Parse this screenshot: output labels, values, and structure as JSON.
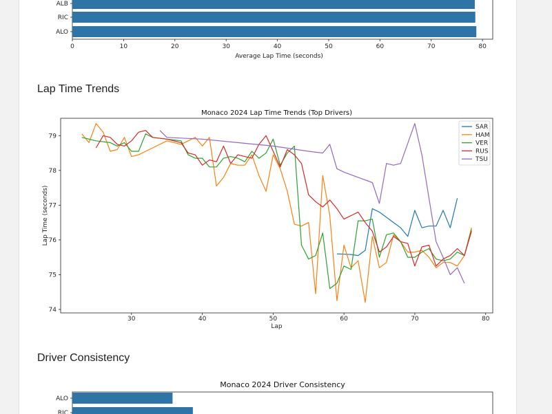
{
  "sections": {
    "trends_heading": "Lap Time Trends",
    "consistency_heading": "Driver Consistency"
  },
  "chart_data": [
    {
      "type": "bar",
      "orientation": "horizontal",
      "title": "",
      "xlabel": "Average Lap Time (seconds)",
      "ylabel": "",
      "categories": [
        "ALB",
        "RIC",
        "ALO"
      ],
      "values": [
        78.5,
        78.6,
        78.8
      ],
      "xlim": [
        0,
        82
      ],
      "xticks": [
        0,
        10,
        20,
        30,
        40,
        50,
        60,
        70,
        80
      ],
      "color": "#2f74a7"
    },
    {
      "type": "line",
      "title": "Monaco 2024 Lap Time Trends (Top Drivers)",
      "xlabel": "Lap",
      "ylabel": "Lap Time (seconds)",
      "xlim": [
        20,
        81
      ],
      "ylim": [
        73.9,
        79.5
      ],
      "xticks": [
        30,
        40,
        50,
        60,
        70,
        80
      ],
      "yticks": [
        74,
        75,
        76,
        77,
        78,
        79
      ],
      "legend": "top-right",
      "series": [
        {
          "name": "SAR",
          "color": "#1f77b4",
          "points": [
            [
              59,
              75.6
            ],
            [
              61,
              75.58
            ],
            [
              62,
              75.55
            ],
            [
              63,
              75.7
            ],
            [
              64,
              76.9
            ],
            [
              65,
              76.8
            ],
            [
              66,
              76.65
            ],
            [
              67,
              76.5
            ],
            [
              68,
              76.35
            ],
            [
              69,
              76.1
            ],
            [
              70,
              76.85
            ],
            [
              71,
              76.35
            ],
            [
              72,
              76.4
            ],
            [
              73,
              76.4
            ],
            [
              74,
              76.85
            ],
            [
              75,
              76.35
            ],
            [
              76,
              77.2
            ]
          ]
        },
        {
          "name": "HAM",
          "color": "#ff7f0e",
          "points": [
            [
              23,
              79.05
            ],
            [
              24,
              78.8
            ],
            [
              25,
              79.35
            ],
            [
              26,
              79.1
            ],
            [
              27,
              78.55
            ],
            [
              28,
              78.6
            ],
            [
              29,
              78.95
            ],
            [
              30,
              78.4
            ],
            [
              31,
              78.45
            ],
            [
              33,
              78.65
            ],
            [
              35,
              78.85
            ],
            [
              37,
              78.75
            ],
            [
              38,
              78.85
            ],
            [
              39,
              78.95
            ],
            [
              40,
              78.7
            ],
            [
              41,
              78.95
            ],
            [
              42,
              77.55
            ],
            [
              43,
              77.8
            ],
            [
              44,
              78.2
            ],
            [
              45,
              78.15
            ],
            [
              46,
              78.15
            ],
            [
              47,
              78.45
            ],
            [
              48,
              77.85
            ],
            [
              49,
              77.4
            ],
            [
              50,
              78.45
            ],
            [
              51,
              78.05
            ],
            [
              52,
              77.4
            ],
            [
              53,
              76.45
            ],
            [
              54,
              76.4
            ],
            [
              55,
              76.5
            ],
            [
              56,
              74.45
            ],
            [
              57,
              77.85
            ],
            [
              58,
              76.7
            ],
            [
              59,
              74.25
            ],
            [
              60,
              75.85
            ],
            [
              61,
              75.2
            ],
            [
              62,
              75.4
            ],
            [
              63,
              74.2
            ],
            [
              64,
              76.1
            ],
            [
              65,
              75.2
            ],
            [
              66,
              75.35
            ],
            [
              67,
              76.15
            ],
            [
              68,
              75.95
            ],
            [
              69,
              75.65
            ],
            [
              70,
              75.65
            ],
            [
              71,
              75.7
            ],
            [
              72,
              75.5
            ],
            [
              73,
              75.2
            ],
            [
              74,
              75.35
            ],
            [
              75,
              75.35
            ],
            [
              76,
              75.25
            ],
            [
              77,
              75.55
            ],
            [
              78,
              76.35
            ]
          ]
        },
        {
          "name": "VER",
          "color": "#2ca02c",
          "points": [
            [
              23,
              78.95
            ],
            [
              25,
              78.85
            ],
            [
              27,
              78.8
            ],
            [
              28,
              78.7
            ],
            [
              29,
              78.8
            ],
            [
              30,
              78.55
            ],
            [
              31,
              78.55
            ],
            [
              32,
              79.05
            ],
            [
              33,
              78.95
            ],
            [
              35,
              78.9
            ],
            [
              37,
              78.85
            ],
            [
              38,
              78.45
            ],
            [
              39,
              78.35
            ],
            [
              40,
              78.35
            ],
            [
              41,
              78.1
            ],
            [
              42,
              78.1
            ],
            [
              43,
              78.35
            ],
            [
              44,
              78.4
            ],
            [
              45,
              78.35
            ],
            [
              46,
              78.25
            ],
            [
              47,
              78.55
            ],
            [
              48,
              78.35
            ],
            [
              49,
              78.5
            ],
            [
              50,
              78.9
            ],
            [
              51,
              78.15
            ],
            [
              52,
              78.5
            ],
            [
              53,
              78.7
            ],
            [
              54,
              75.85
            ],
            [
              55,
              75.45
            ],
            [
              56,
              75.55
            ],
            [
              57,
              76.2
            ],
            [
              58,
              74.6
            ],
            [
              59,
              74.75
            ],
            [
              60,
              75.25
            ],
            [
              61,
              75.15
            ],
            [
              62,
              76.55
            ],
            [
              63,
              76.55
            ],
            [
              64,
              76.6
            ],
            [
              65,
              75.5
            ],
            [
              66,
              76.15
            ],
            [
              67,
              76.2
            ],
            [
              68,
              75.95
            ],
            [
              69,
              75.5
            ],
            [
              70,
              75.5
            ],
            [
              71,
              75.65
            ],
            [
              72,
              75.75
            ],
            [
              73,
              75.45
            ],
            [
              74,
              75.4
            ],
            [
              75,
              75.45
            ],
            [
              76,
              75.65
            ],
            [
              77,
              75.55
            ],
            [
              78,
              76.3
            ]
          ]
        },
        {
          "name": "RUS",
          "color": "#d62728",
          "points": [
            [
              25,
              78.65
            ],
            [
              26,
              79.0
            ],
            [
              27,
              78.95
            ],
            [
              28,
              78.75
            ],
            [
              29,
              78.7
            ],
            [
              30,
              78.85
            ],
            [
              31,
              79.1
            ],
            [
              32,
              79.15
            ],
            [
              33,
              78.95
            ],
            [
              35,
              78.9
            ],
            [
              37,
              78.8
            ],
            [
              38,
              78.5
            ],
            [
              39,
              78.45
            ],
            [
              40,
              78.15
            ],
            [
              41,
              78.3
            ],
            [
              42,
              78.25
            ],
            [
              43,
              78.7
            ],
            [
              44,
              78.2
            ],
            [
              45,
              78.45
            ],
            [
              46,
              78.4
            ],
            [
              47,
              78.35
            ],
            [
              48,
              78.75
            ],
            [
              49,
              79.0
            ],
            [
              50,
              78.55
            ],
            [
              51,
              78.1
            ],
            [
              52,
              78.6
            ],
            [
              53,
              78.45
            ],
            [
              54,
              78.2
            ],
            [
              55,
              77.3
            ],
            [
              56,
              77.1
            ],
            [
              57,
              76.95
            ],
            [
              58,
              77.15
            ],
            [
              59,
              76.9
            ],
            [
              60,
              76.6
            ],
            [
              61,
              76.7
            ],
            [
              62,
              76.8
            ],
            [
              63,
              76.5
            ],
            [
              64,
              76.25
            ],
            [
              65,
              75.65
            ],
            [
              66,
              75.8
            ],
            [
              67,
              76.1
            ],
            [
              68,
              75.95
            ],
            [
              69,
              75.9
            ],
            [
              70,
              75.25
            ],
            [
              71,
              75.8
            ],
            [
              72,
              75.85
            ],
            [
              73,
              75.25
            ],
            [
              74,
              75.45
            ],
            [
              75,
              75.55
            ],
            [
              76,
              75.75
            ],
            [
              77,
              75.55
            ],
            [
              78,
              76.25
            ]
          ]
        },
        {
          "name": "TSU",
          "color": "#9467bd",
          "points": [
            [
              34,
              79.15
            ],
            [
              35,
              78.95
            ],
            [
              37,
              78.93
            ],
            [
              40,
              78.9
            ],
            [
              45,
              78.8
            ],
            [
              50,
              78.7
            ],
            [
              55,
              78.55
            ],
            [
              57,
              78.5
            ],
            [
              58,
              78.75
            ],
            [
              59,
              78.05
            ],
            [
              60,
              77.95
            ],
            [
              62,
              77.8
            ],
            [
              64,
              77.65
            ],
            [
              65,
              77.05
            ],
            [
              66,
              78.2
            ],
            [
              67,
              78.15
            ],
            [
              68,
              78.2
            ],
            [
              70,
              79.35
            ],
            [
              71,
              78.45
            ],
            [
              72,
              77.2
            ],
            [
              73,
              75.95
            ],
            [
              74,
              75.5
            ],
            [
              75,
              75.0
            ],
            [
              76,
              75.2
            ],
            [
              77,
              74.75
            ]
          ]
        }
      ]
    },
    {
      "type": "bar",
      "orientation": "horizontal",
      "title": "Monaco 2024 Driver Consistency",
      "xlabel": "",
      "ylabel": "",
      "categories": [
        "ALO",
        "RIC"
      ],
      "values": [
        1.43,
        1.72
      ],
      "xlim": [
        0,
        6
      ],
      "color": "#2f74a7"
    }
  ]
}
